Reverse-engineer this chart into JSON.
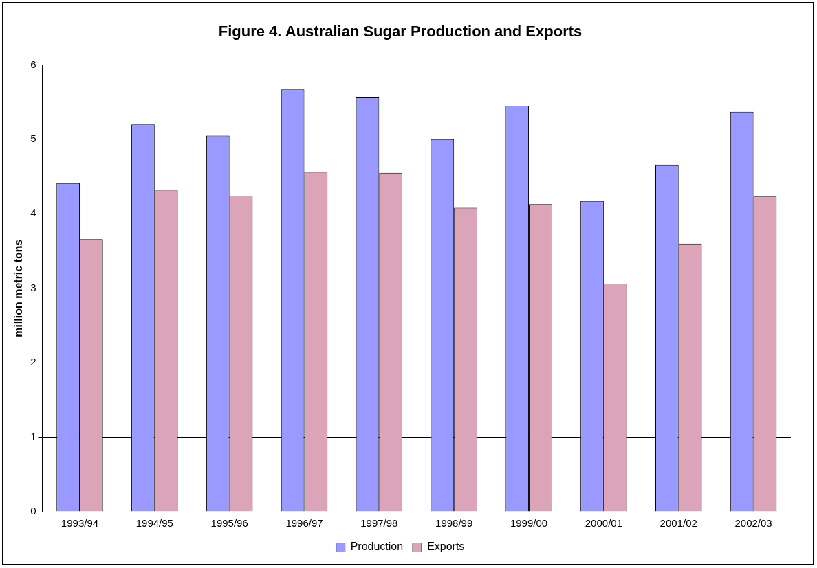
{
  "chart_data": {
    "type": "bar",
    "title": "Figure 4. Australian Sugar Production and Exports",
    "ylabel": "million metric tons",
    "categories": [
      "1993/94",
      "1994/95",
      "1995/96",
      "1996/97",
      "1997/98",
      "1998/99",
      "1999/00",
      "2000/01",
      "2001/02",
      "2002/03"
    ],
    "series": [
      {
        "name": "Production",
        "color": "#9999ff",
        "values": [
          4.41,
          5.2,
          5.05,
          5.67,
          5.57,
          5.0,
          5.45,
          4.17,
          4.66,
          5.37
        ]
      },
      {
        "name": "Exports",
        "color": "#dca4b8",
        "values": [
          3.66,
          4.32,
          4.24,
          4.56,
          4.55,
          4.08,
          4.13,
          3.06,
          3.6,
          4.23
        ]
      }
    ],
    "ylim": [
      0,
      6
    ],
    "yticks": [
      0,
      1,
      2,
      3,
      4,
      5,
      6
    ],
    "grid": "y",
    "legend": "bottom"
  }
}
